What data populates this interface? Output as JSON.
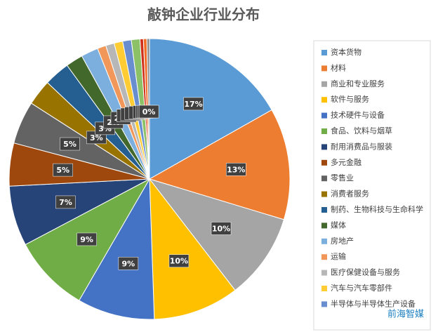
{
  "chart_data": {
    "type": "pie",
    "title": "敲钟企业行业分布",
    "categories": [
      "资本货物",
      "材料",
      "商业和专业服务",
      "软件与服务",
      "技术硬件与设备",
      "食品、饮料与烟草",
      "耐用消费品与服装",
      "多元金融",
      "零售业",
      "消费者服务",
      "制药、生物科技与生命科学",
      "媒体",
      "房地产",
      "运输",
      "医疗保健设备与服务",
      "汽车与汽车零部件",
      "半导体与半导体生产设备",
      null,
      null,
      null,
      null
    ],
    "values": [
      17,
      13,
      10,
      10,
      9,
      9,
      7,
      5,
      5,
      3,
      3,
      2,
      2,
      1,
      1,
      1,
      1,
      1,
      0.4,
      0.4,
      0.3
    ],
    "value_labels": [
      "17%",
      "13%",
      "10%",
      "10%",
      "9%",
      "9%",
      "7%",
      "5%",
      "5%",
      "3%",
      "3%",
      "2%",
      "2%",
      "1%",
      "1%",
      "1%",
      "1%",
      "1%",
      "0%",
      "0%",
      "0%"
    ],
    "colors": [
      "#5b9bd5",
      "#ed7d31",
      "#a5a5a5",
      "#ffc000",
      "#4472c4",
      "#70ad47",
      "#264478",
      "#9e480e",
      "#636363",
      "#997300",
      "#255e91",
      "#43682b",
      "#7cafdd",
      "#f1975a",
      "#b7b7b7",
      "#ffcd33",
      "#698ed0",
      "#8cc168",
      "#d0301a",
      "#f06e2a",
      "#8a8a8a"
    ],
    "legend": "right",
    "watermark": "前海智媒"
  }
}
